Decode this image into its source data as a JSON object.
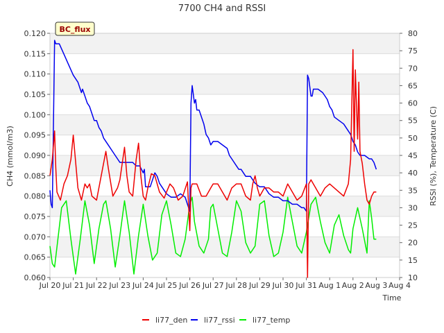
{
  "chart_data": {
    "type": "line",
    "title": "7700 CH4 and RSSI",
    "badge": "BC_flux",
    "xlabel": "Time",
    "ylabel_left": "CH4 (mmol/m3)",
    "ylabel_right": "RSSI (%), Temperature (C)",
    "xlim": [
      0,
      15
    ],
    "ylim_left": [
      0.06,
      0.12
    ],
    "ylim_right": [
      10,
      80
    ],
    "x_ticks": [
      {
        "v": 0,
        "label": "Jul 20"
      },
      {
        "v": 1,
        "label": "Jul 21"
      },
      {
        "v": 2,
        "label": "Jul 22"
      },
      {
        "v": 3,
        "label": "Jul 23"
      },
      {
        "v": 4,
        "label": "Jul 24"
      },
      {
        "v": 5,
        "label": "Jul 25"
      },
      {
        "v": 6,
        "label": "Jul 26"
      },
      {
        "v": 7,
        "label": "Jul 27"
      },
      {
        "v": 8,
        "label": "Jul 28"
      },
      {
        "v": 9,
        "label": "Jul 29"
      },
      {
        "v": 10,
        "label": "Jul 30"
      },
      {
        "v": 11,
        "label": "Jul 31"
      },
      {
        "v": 12,
        "label": "Aug 1"
      },
      {
        "v": 13,
        "label": "Aug 2"
      },
      {
        "v": 14,
        "label": "Aug 3"
      },
      {
        "v": 15,
        "label": "Aug 4"
      }
    ],
    "y_ticks_left": [
      "0.060",
      "0.065",
      "0.070",
      "0.075",
      "0.080",
      "0.085",
      "0.090",
      "0.095",
      "0.100",
      "0.105",
      "0.110",
      "0.115",
      "0.120"
    ],
    "y_ticks_right": [
      "10",
      "15",
      "20",
      "25",
      "30",
      "35",
      "40",
      "45",
      "50",
      "55",
      "60",
      "65",
      "70",
      "75",
      "80"
    ],
    "series": [
      {
        "name": "li77_den",
        "axis": "left",
        "color": "#ee0000",
        "x": [
          0.0,
          0.1,
          0.2,
          0.25,
          0.3,
          0.45,
          0.6,
          0.75,
          0.9,
          1.0,
          1.2,
          1.35,
          1.5,
          1.6,
          1.7,
          1.8,
          2.0,
          2.2,
          2.4,
          2.5,
          2.7,
          2.9,
          3.0,
          3.2,
          3.3,
          3.4,
          3.55,
          3.7,
          3.8,
          3.9,
          4.0,
          4.1,
          4.2,
          4.35,
          4.5,
          4.7,
          4.9,
          5.0,
          5.15,
          5.3,
          5.5,
          5.7,
          5.9,
          6.0,
          6.05,
          6.1,
          6.3,
          6.5,
          6.7,
          6.9,
          7.0,
          7.2,
          7.4,
          7.6,
          7.8,
          8.0,
          8.2,
          8.4,
          8.6,
          8.7,
          8.8,
          8.9,
          9.0,
          9.2,
          9.4,
          9.6,
          9.8,
          10.0,
          10.2,
          10.4,
          10.6,
          10.8,
          11.0,
          11.05,
          11.1,
          11.2,
          11.4,
          11.6,
          11.8,
          12.0,
          12.2,
          12.4,
          12.6,
          12.8,
          12.9,
          13.0,
          13.05,
          13.1,
          13.2,
          13.25,
          13.3,
          13.4,
          13.5,
          13.6,
          13.7,
          13.8,
          13.9,
          14.0
        ],
        "y": [
          0.085,
          0.089,
          0.096,
          0.087,
          0.081,
          0.079,
          0.083,
          0.085,
          0.089,
          0.095,
          0.082,
          0.079,
          0.083,
          0.082,
          0.083,
          0.08,
          0.079,
          0.085,
          0.091,
          0.087,
          0.08,
          0.082,
          0.084,
          0.092,
          0.085,
          0.081,
          0.08,
          0.089,
          0.093,
          0.085,
          0.08,
          0.079,
          0.082,
          0.0855,
          0.085,
          0.081,
          0.0795,
          0.081,
          0.083,
          0.082,
          0.079,
          0.08,
          0.0835,
          0.0715,
          0.082,
          0.083,
          0.083,
          0.08,
          0.08,
          0.082,
          0.083,
          0.083,
          0.081,
          0.079,
          0.082,
          0.083,
          0.083,
          0.08,
          0.079,
          0.083,
          0.085,
          0.082,
          0.08,
          0.082,
          0.082,
          0.081,
          0.081,
          0.08,
          0.083,
          0.081,
          0.079,
          0.08,
          0.083,
          0.06,
          0.083,
          0.084,
          0.082,
          0.08,
          0.082,
          0.083,
          0.082,
          0.081,
          0.08,
          0.083,
          0.089,
          0.116,
          0.091,
          0.111,
          0.094,
          0.108,
          0.091,
          0.088,
          0.083,
          0.079,
          0.078,
          0.08,
          0.081,
          0.081
        ]
      },
      {
        "name": "li77_rssi",
        "axis": "right",
        "color": "#0000ee",
        "x": [
          0.0,
          0.05,
          0.1,
          0.2,
          0.25,
          0.4,
          0.6,
          0.8,
          1.0,
          1.2,
          1.35,
          1.4,
          1.5,
          1.6,
          1.7,
          1.8,
          1.9,
          2.0,
          2.1,
          2.2,
          2.3,
          2.5,
          2.7,
          2.9,
          3.0,
          3.2,
          3.4,
          3.55,
          3.7,
          3.85,
          4.0,
          4.05,
          4.1,
          4.3,
          4.5,
          4.6,
          4.7,
          4.8,
          5.0,
          5.2,
          5.4,
          5.6,
          5.8,
          5.9,
          6.0,
          6.05,
          6.1,
          6.2,
          6.25,
          6.3,
          6.4,
          6.6,
          6.7,
          6.8,
          6.9,
          7.0,
          7.1,
          7.2,
          7.4,
          7.6,
          7.7,
          7.8,
          8.0,
          8.1,
          8.2,
          8.4,
          8.6,
          8.7,
          8.8,
          9.0,
          9.2,
          9.4,
          9.6,
          9.8,
          10.0,
          10.2,
          10.4,
          10.6,
          10.8,
          10.9,
          11.0,
          11.05,
          11.1,
          11.2,
          11.25,
          11.3,
          11.5,
          11.7,
          11.8,
          11.9,
          12.0,
          12.1,
          12.2,
          12.4,
          12.6,
          12.8,
          12.9,
          13.0,
          13.1,
          13.2,
          13.3,
          13.5,
          13.7,
          13.8,
          13.9,
          14.0
        ],
        "y": [
          35,
          31,
          30,
          78,
          77,
          77,
          74,
          71,
          68,
          66,
          63,
          64,
          62,
          60,
          59,
          57,
          55,
          55,
          53,
          52,
          50,
          48,
          46,
          44,
          43,
          43,
          43,
          43,
          42,
          42,
          40,
          41,
          36,
          36,
          40,
          39,
          37,
          36,
          34,
          33,
          33,
          34,
          33,
          31,
          29,
          60,
          65,
          60,
          61,
          58,
          58,
          54,
          51,
          50,
          48,
          49,
          49,
          49,
          48,
          47,
          45,
          44,
          42,
          41,
          41,
          39,
          39,
          38,
          37,
          36,
          36,
          34,
          33,
          33,
          32,
          32,
          31,
          31,
          30,
          30,
          29,
          68,
          67,
          62,
          62,
          64,
          64,
          63,
          62,
          61,
          59,
          58,
          56,
          55,
          54,
          52,
          51,
          49,
          48,
          46,
          45,
          45,
          44,
          44,
          43,
          41
        ]
      },
      {
        "name": "li77_temp",
        "axis": "right",
        "color": "#00ee00",
        "x": [
          0.0,
          0.1,
          0.2,
          0.5,
          0.7,
          0.9,
          1.1,
          1.3,
          1.5,
          1.7,
          1.9,
          2.1,
          2.3,
          2.4,
          2.6,
          2.8,
          3.0,
          3.2,
          3.4,
          3.6,
          3.8,
          4.0,
          4.2,
          4.4,
          4.6,
          4.8,
          5.0,
          5.2,
          5.4,
          5.6,
          5.8,
          6.0,
          6.1,
          6.2,
          6.4,
          6.6,
          6.8,
          6.9,
          7.0,
          7.2,
          7.4,
          7.6,
          7.8,
          8.0,
          8.2,
          8.4,
          8.6,
          8.8,
          9.0,
          9.2,
          9.4,
          9.6,
          9.8,
          10.0,
          10.2,
          10.4,
          10.6,
          10.8,
          11.0,
          11.2,
          11.4,
          11.6,
          11.8,
          12.0,
          12.2,
          12.4,
          12.6,
          12.8,
          12.9,
          13.0,
          13.2,
          13.4,
          13.6,
          13.7,
          13.8,
          13.9,
          14.0
        ],
        "y": [
          19,
          14,
          13,
          30,
          32,
          21,
          11,
          21,
          32,
          25,
          14,
          24,
          31,
          32,
          24,
          13,
          22,
          32,
          23,
          11,
          22,
          31,
          22,
          15,
          17,
          28,
          32,
          25,
          17,
          16,
          21,
          31,
          33,
          26,
          19,
          17,
          21,
          30,
          31,
          24,
          17,
          16,
          23,
          32,
          29,
          20,
          17,
          19,
          31,
          32,
          22,
          16,
          17,
          23,
          33,
          26,
          19,
          17,
          23,
          31,
          33,
          26,
          20,
          17,
          25,
          28,
          22,
          18,
          17,
          24,
          30,
          24,
          17,
          32,
          27,
          21,
          21
        ]
      }
    ]
  }
}
